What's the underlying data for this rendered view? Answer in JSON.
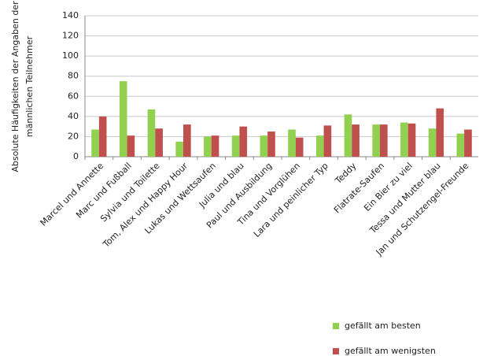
{
  "chart_data": {
    "type": "bar",
    "ylabel": [
      "Absolute Häufigkeiten der Angaben der",
      "männlichen Teilnehmer"
    ],
    "categories": [
      "Marcel und Annette",
      "Marc und Fußball",
      "Sylvia und Toilette",
      "Tom, Alex und Happy Hour",
      "Lukas und Wettsaufen",
      "Julia und blau",
      "Paul und Ausbildung",
      "Tina und Vorglühen",
      "Lara und peinlicher Typ",
      "Teddy",
      "Flatrate-Saufen",
      "Ein Bier zu viel",
      "Tessa und Mutter blau",
      "Jan und Schutzengel-Freunde"
    ],
    "series": [
      {
        "name": "gefällt am besten",
        "color": "#92d050",
        "values": [
          27,
          75,
          47,
          15,
          20,
          21,
          21,
          27,
          21,
          42,
          32,
          34,
          28,
          23
        ]
      },
      {
        "name": "gefällt am wenigsten",
        "color": "#c0504d",
        "values": [
          40,
          21,
          28,
          32,
          21,
          30,
          25,
          19,
          31,
          32,
          32,
          33,
          48,
          27
        ]
      }
    ],
    "ylim": [
      0,
      140
    ],
    "yticks": [
      0,
      20,
      40,
      60,
      80,
      100,
      120,
      140
    ],
    "grid": true
  }
}
